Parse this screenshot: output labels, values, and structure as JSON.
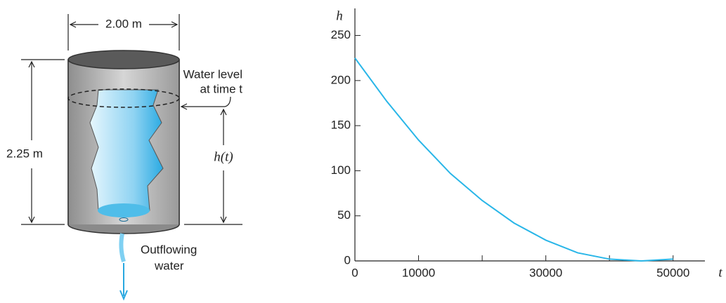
{
  "diagram": {
    "width_label": "2.00 m",
    "height_label": "2.25 m",
    "level_label": [
      "Water level",
      "at time t"
    ],
    "h_label": "h(t)",
    "outflow_label": [
      "Outflowing",
      "water"
    ]
  },
  "chart_data": {
    "type": "line",
    "y_label": "h",
    "x_label": "t",
    "x": [
      0,
      5000,
      10000,
      15000,
      20000,
      25000,
      30000,
      35000,
      40000,
      45000,
      50000
    ],
    "series": [
      {
        "color": "#29b6e8",
        "values": [
          225,
          177,
          134,
          97,
          67,
          42,
          23,
          9,
          2,
          0,
          2
        ]
      }
    ],
    "xlim": [
      0,
      55000
    ],
    "xticks": [
      0,
      10000,
      30000,
      50000
    ],
    "xminor_ticks": [
      20000,
      40000
    ],
    "ylim": [
      0,
      280
    ],
    "yticks": [
      0,
      50,
      100,
      150,
      200,
      250
    ]
  }
}
